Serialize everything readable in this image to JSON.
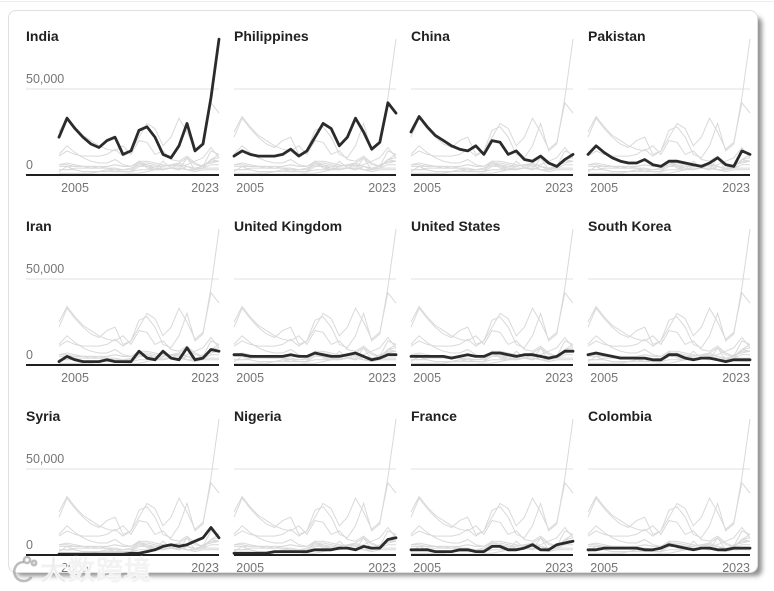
{
  "watermark": {
    "text": "大数跨境",
    "icon": "swirl-logo-icon"
  },
  "chart_data": {
    "type": "line",
    "layout": "small-multiples-3x4",
    "title": "",
    "note": "Each panel highlights one country in bold; all 12 series repeat as light gray context lines in every panel.",
    "years": [
      2003,
      2004,
      2005,
      2006,
      2007,
      2008,
      2009,
      2010,
      2011,
      2012,
      2013,
      2014,
      2015,
      2016,
      2017,
      2018,
      2019,
      2020,
      2021,
      2022,
      2023
    ],
    "x_tick_labels": [
      "2005",
      "2023"
    ],
    "y_tick_labels": [
      "50,000",
      "0"
    ],
    "y_gridline_value": 50000,
    "ylim": [
      0,
      80000
    ],
    "xlabel": "",
    "ylabel": "",
    "grid": "single horizontal gridline at 50,000",
    "legend": "none (panel titles act as labels)",
    "panels": [
      "India",
      "Philippines",
      "China",
      "Pakistan",
      "Iran",
      "United Kingdom",
      "United States",
      "South Korea",
      "Syria",
      "Nigeria",
      "France",
      "Colombia"
    ],
    "series": {
      "India": [
        22000,
        33000,
        27000,
        22000,
        18000,
        16000,
        20000,
        22000,
        12000,
        14000,
        26000,
        28000,
        22000,
        12000,
        10000,
        17000,
        30000,
        14000,
        18000,
        45000,
        79000
      ],
      "Philippines": [
        11000,
        14000,
        12000,
        11000,
        11000,
        11000,
        12000,
        15000,
        11000,
        14000,
        22000,
        30000,
        27000,
        17000,
        22000,
        33000,
        25000,
        15000,
        19000,
        42000,
        36000
      ],
      "China": [
        25000,
        34000,
        28000,
        23000,
        20000,
        17000,
        15000,
        14000,
        17000,
        12000,
        20000,
        19000,
        12000,
        14000,
        9000,
        8000,
        11000,
        7000,
        5000,
        9000,
        12000
      ],
      "Pakistan": [
        12000,
        17000,
        13000,
        10000,
        8000,
        7000,
        7000,
        9000,
        6000,
        5000,
        8000,
        8000,
        7000,
        6000,
        5000,
        7000,
        10000,
        6000,
        5000,
        14000,
        12000
      ],
      "Iran": [
        2000,
        5000,
        3000,
        2000,
        2000,
        2000,
        3000,
        2000,
        2000,
        2000,
        8000,
        4000,
        3000,
        8000,
        4000,
        3000,
        10000,
        3000,
        4000,
        9000,
        8000
      ],
      "United Kingdom": [
        6000,
        6000,
        5000,
        5000,
        5000,
        5000,
        5000,
        6000,
        5000,
        5000,
        7000,
        6000,
        5000,
        5000,
        6000,
        7000,
        5000,
        3000,
        4000,
        6000,
        6000
      ],
      "United States": [
        5000,
        5000,
        5000,
        5000,
        5000,
        4000,
        5000,
        6000,
        5000,
        5000,
        7000,
        7000,
        6000,
        5000,
        6000,
        6000,
        5000,
        4000,
        5000,
        8000,
        8000
      ],
      "South Korea": [
        6000,
        7000,
        6000,
        5000,
        4000,
        4000,
        4000,
        4000,
        3000,
        3000,
        6000,
        6000,
        4000,
        3000,
        4000,
        4000,
        3000,
        2000,
        3000,
        3000,
        3000
      ],
      "Syria": [
        500,
        500,
        500,
        500,
        500,
        500,
        500,
        500,
        500,
        1000,
        1000,
        2000,
        3000,
        5000,
        6000,
        5000,
        6000,
        8000,
        10000,
        16000,
        10000
      ],
      "Nigeria": [
        1000,
        1000,
        1000,
        1000,
        1000,
        2000,
        2000,
        2000,
        2000,
        2000,
        3000,
        3000,
        3000,
        4000,
        4000,
        3000,
        5000,
        4000,
        4000,
        9000,
        10000
      ],
      "France": [
        3000,
        3000,
        3000,
        2000,
        2000,
        2000,
        3000,
        3000,
        2000,
        2000,
        5000,
        5000,
        3000,
        3000,
        4000,
        6000,
        3000,
        3000,
        6000,
        7000,
        8000
      ],
      "Colombia": [
        3000,
        3000,
        4000,
        4000,
        4000,
        4000,
        4000,
        3000,
        3000,
        4000,
        6000,
        5000,
        4000,
        3000,
        4000,
        4000,
        3000,
        3000,
        4000,
        4000,
        4000
      ]
    },
    "colors": {
      "focus_line": "#2b2b2b",
      "context_line": "#d9d9d9",
      "gridline": "#e0e0e0",
      "axis_line": "#1f1f1f",
      "tick_label": "#757575",
      "panel_title": "#212121",
      "card_border": "#e0e0e0",
      "background": "#ffffff"
    }
  }
}
